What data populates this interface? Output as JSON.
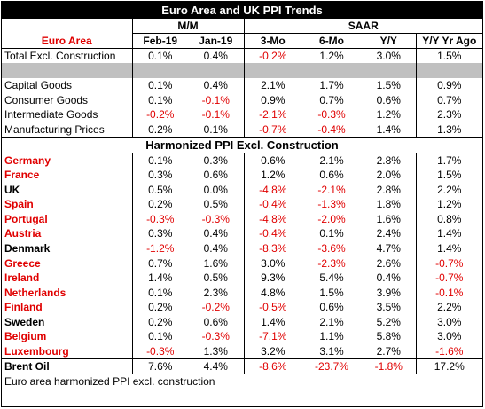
{
  "title": "Euro Area and UK PPI Trends",
  "groups": {
    "mm": "M/M",
    "saar": "SAAR"
  },
  "columns": [
    "Euro Area",
    "Feb-19",
    "Jan-19",
    "3-Mo",
    "6-Mo",
    "Y/Y",
    "Y/Y Yr Ago"
  ],
  "euro_rows": [
    [
      "Total Excl. Construction",
      "0.1%",
      "0.4%",
      "-0.2%",
      "1.2%",
      "3.0%",
      "1.5%"
    ]
  ],
  "component_rows": [
    [
      "Capital Goods",
      "0.1%",
      "0.4%",
      "2.1%",
      "1.7%",
      "1.5%",
      "0.9%"
    ],
    [
      "Consumer Goods",
      "0.1%",
      "-0.1%",
      "0.9%",
      "0.7%",
      "0.6%",
      "0.7%"
    ],
    [
      "Intermediate Goods",
      "-0.2%",
      "-0.1%",
      "-2.1%",
      "-0.3%",
      "1.2%",
      "2.3%"
    ],
    [
      "Manufacturing Prices",
      "0.2%",
      "0.1%",
      "-0.7%",
      "-0.4%",
      "1.4%",
      "1.3%"
    ]
  ],
  "section2_title": "Harmonized PPI Excl. Construction",
  "country_rows": [
    {
      "cells": [
        "Germany",
        "0.1%",
        "0.3%",
        "0.6%",
        "2.1%",
        "2.8%",
        "1.7%"
      ],
      "euro": true
    },
    {
      "cells": [
        "France",
        "0.3%",
        "0.6%",
        "1.2%",
        "0.6%",
        "2.0%",
        "1.5%"
      ],
      "euro": true
    },
    {
      "cells": [
        "UK",
        "0.5%",
        "0.0%",
        "-4.8%",
        "-2.1%",
        "2.8%",
        "2.2%"
      ],
      "euro": false
    },
    {
      "cells": [
        "Spain",
        "0.2%",
        "0.5%",
        "-0.4%",
        "-1.3%",
        "1.8%",
        "1.2%"
      ],
      "euro": true
    },
    {
      "cells": [
        "Portugal",
        "-0.3%",
        "-0.3%",
        "-4.8%",
        "-2.0%",
        "1.6%",
        "0.8%"
      ],
      "euro": true
    },
    {
      "cells": [
        "Austria",
        "0.3%",
        "0.4%",
        "-0.4%",
        "0.1%",
        "2.4%",
        "1.4%"
      ],
      "euro": true
    },
    {
      "cells": [
        "Denmark",
        "-1.2%",
        "0.4%",
        "-8.3%",
        "-3.6%",
        "4.7%",
        "1.4%"
      ],
      "euro": false
    },
    {
      "cells": [
        "Greece",
        "0.7%",
        "1.6%",
        "3.0%",
        "-2.3%",
        "2.6%",
        "-0.7%"
      ],
      "euro": true
    },
    {
      "cells": [
        "Ireland",
        "1.4%",
        "0.5%",
        "9.3%",
        "5.4%",
        "0.4%",
        "-0.7%"
      ],
      "euro": true
    },
    {
      "cells": [
        "Netherlands",
        "0.1%",
        "2.3%",
        "4.8%",
        "1.5%",
        "3.9%",
        "-0.1%"
      ],
      "euro": true
    },
    {
      "cells": [
        "Finland",
        "0.2%",
        "-0.2%",
        "-0.5%",
        "0.6%",
        "3.5%",
        "2.2%"
      ],
      "euro": true
    },
    {
      "cells": [
        "Sweden",
        "0.2%",
        "0.6%",
        "1.4%",
        "2.1%",
        "5.2%",
        "3.0%"
      ],
      "euro": false
    },
    {
      "cells": [
        "Belgium",
        "0.1%",
        "-0.3%",
        "-7.1%",
        "1.1%",
        "5.8%",
        "3.0%"
      ],
      "euro": true
    },
    {
      "cells": [
        "Luxembourg",
        "-0.3%",
        "1.3%",
        "3.2%",
        "3.1%",
        "2.7%",
        "-1.6%"
      ],
      "euro": true
    }
  ],
  "brent_row": [
    "Brent Oil",
    "7.6%",
    "4.4%",
    "-8.6%",
    "-23.7%",
    "-1.8%",
    "17.2%"
  ],
  "footnote": "Euro area harmonized PPI excl. construction",
  "colors": {
    "negative": "#e00000",
    "euro_member": "#e00000",
    "header_bg": "#000000",
    "gray_bar": "#c0c0c0"
  }
}
